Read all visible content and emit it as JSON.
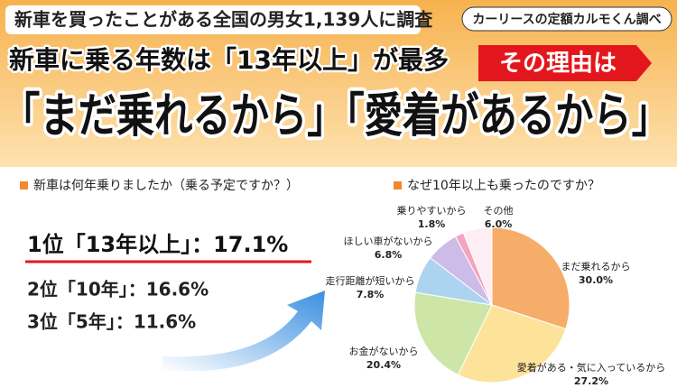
{
  "header": {
    "survey": "新車を買ったことがある全国の男女1,139人に調査",
    "source": "カーリースの定額カルモくん調べ",
    "headline": "新車に乗る年数は「13年以上」が最多",
    "badge": "その理由は",
    "main": "「まだ乗れるから」「愛着があるから」"
  },
  "ranking": {
    "heading": "新車は何年乗りましたか（乗る予定ですか？）",
    "items": [
      "1位「13年以上」：17.1%",
      "2位「10年」：16.6%",
      "3位「5年」：11.6%"
    ]
  },
  "chart_data": {
    "type": "pie",
    "title": "なぜ10年以上も乗ったのですか？",
    "categories": [
      "まだ乗れるから",
      "愛着がある・気に入っているから",
      "お金がないから",
      "走行距離が短いから",
      "ほしい車がないから",
      "乗りやすいから",
      "その他"
    ],
    "values": [
      30.0,
      27.2,
      20.4,
      7.8,
      6.8,
      1.8,
      6.0
    ],
    "value_labels": [
      "30.0%",
      "27.2%",
      "20.4%",
      "7.8%",
      "6.8%",
      "1.8%",
      "6.0%"
    ],
    "colors": [
      "#f7ad6a",
      "#fde39a",
      "#cde6a8",
      "#acd3f0",
      "#cdbbe8",
      "#f5a3c2",
      "#fdeef3"
    ]
  }
}
